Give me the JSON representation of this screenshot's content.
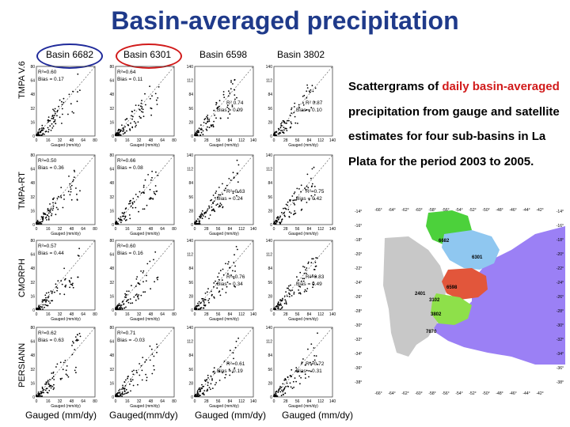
{
  "title": "Basin-averaged precipitation",
  "columns": [
    "Basin 6682",
    "Basin 6301",
    "Basin 6598",
    "Basin 3802"
  ],
  "rows": [
    "TMPA V.6",
    "TMPA-RT",
    "CMORPH",
    "PERSIANN"
  ],
  "footer_labels": [
    "Gauged (mm/dy)",
    "Gauged(mm/dy)",
    "Gauged (mm/dy)",
    "Gauged (mm/dy)"
  ],
  "description": {
    "part1": "Scattergrams of ",
    "highlight1": "daily basin-averaged",
    "part2": " precipitation from gauge and satellite estimates for four sub-basins in La Plata for the period 2003 to  2005."
  },
  "colors": {
    "title": "#1f3a8a",
    "ellipse_blue": "#1f2a9a",
    "ellipse_red": "#d11a1a",
    "highlight": "#d11a1a"
  },
  "panels": [
    [
      {
        "r2": "R²=0.60",
        "bias": "Bias = 0.17"
      },
      {
        "r2": "R²=0.64",
        "bias": "Bias = 0.11"
      },
      {
        "r2": "R² 0.74",
        "bias": "Bias = 0.09"
      },
      {
        "r2": "R² 0.87",
        "bias": "Bias = 0.10"
      }
    ],
    [
      {
        "r2": "R²=0.50",
        "bias": "Bias = 0.36"
      },
      {
        "r2": "R²=0.66",
        "bias": "Bias = 0.08"
      },
      {
        "r2": "R²=0.63",
        "bias": "Bias = 0.24"
      },
      {
        "r2": "R²=0.75",
        "bias": "Bias = 0.42"
      }
    ],
    [
      {
        "r2": "R²=0.57",
        "bias": "Bias = 0.44"
      },
      {
        "r2": "R²=0.60",
        "bias": "Bias = 0.16"
      },
      {
        "r2": "R²=0.76",
        "bias": "Bias = 0.34"
      },
      {
        "r2": "R²=0.83",
        "bias": "Bias = 0.49"
      }
    ],
    [
      {
        "r2": "R²=0.62",
        "bias": "Bias = 0.63"
      },
      {
        "r2": "R²=0.71",
        "bias": "Bias = -0.03"
      },
      {
        "r2": "R²=0.61",
        "bias": "Bias = 0.19"
      },
      {
        "r2": "R²=0.72",
        "bias": "Bias = 0.31"
      }
    ]
  ],
  "axis_ticks": {
    "small": [
      "0",
      "16",
      "32",
      "48",
      "64",
      "80"
    ],
    "large": [
      "0",
      "28",
      "56",
      "84",
      "112",
      "140"
    ]
  },
  "axis_label": "Gauged (mm/dy)",
  "map": {
    "lon_ticks": [
      "-66°",
      "-64°",
      "-62°",
      "-60°",
      "-58°",
      "-56°",
      "-54°",
      "-52°",
      "-50°",
      "-48°",
      "-46°",
      "-44°",
      "-42°"
    ],
    "lat_ticks": [
      "-14°",
      "-16°",
      "-18°",
      "-20°",
      "-22°",
      "-24°",
      "-26°",
      "-28°",
      "-30°",
      "-32°",
      "-34°",
      "-36°",
      "-38°"
    ],
    "basin_labels": [
      "6682",
      "6301",
      "6598",
      "2401",
      "3102",
      "3802",
      "7870"
    ],
    "region_colors": {
      "green": "#4cd13b",
      "blue": "#8fc7f0",
      "red": "#e2563b",
      "lime": "#8ee04a",
      "grey": "#c8c8c8",
      "ocean": "#9b80f5"
    }
  }
}
